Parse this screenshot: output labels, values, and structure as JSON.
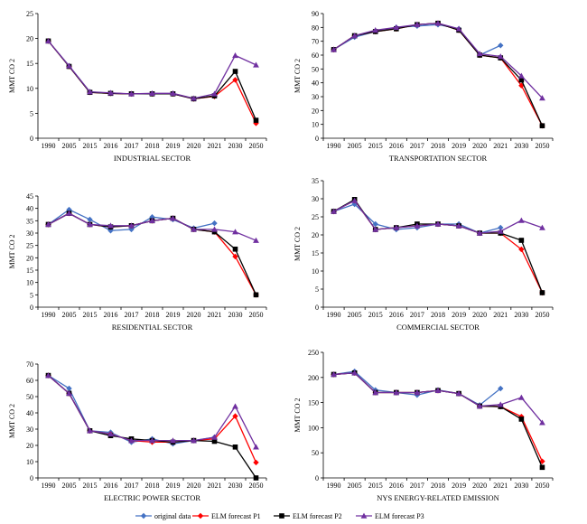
{
  "chart_data": {
    "x_categories": [
      "1990",
      "2005",
      "2015",
      "2016",
      "2017",
      "2018",
      "2019",
      "2020",
      "2021",
      "2030",
      "2050"
    ],
    "legend": [
      {
        "name": "original data",
        "color": "#4472C4",
        "marker": "diamond"
      },
      {
        "name": "ELM forecast P1",
        "color": "#FF0000",
        "marker": "diamond"
      },
      {
        "name": "ELM forecast P2",
        "color": "#000000",
        "marker": "square"
      },
      {
        "name": "ELM forecast P3",
        "color": "#7030A0",
        "marker": "triangle"
      }
    ],
    "panels": [
      {
        "type": "line",
        "title": "INDUSTRIAL SECTOR",
        "ylabel": "MMT CO 2",
        "ylim": [
          0,
          25
        ],
        "yticks": [
          0,
          5,
          10,
          15,
          20,
          25
        ],
        "series": [
          {
            "name": "original data",
            "values": [
              19.5,
              14.5,
              9.3,
              9.0,
              8.9,
              8.9,
              8.9,
              7.9,
              8.4,
              null,
              null
            ]
          },
          {
            "name": "ELM forecast P1",
            "values": [
              19.5,
              14.4,
              9.2,
              9.0,
              8.9,
              8.9,
              8.9,
              7.9,
              8.4,
              11.7,
              3.0
            ]
          },
          {
            "name": "ELM forecast P2",
            "values": [
              19.5,
              14.4,
              9.2,
              9.0,
              8.9,
              8.9,
              8.9,
              7.9,
              8.5,
              13.4,
              3.6
            ]
          },
          {
            "name": "ELM forecast P3",
            "values": [
              19.5,
              14.5,
              9.3,
              9.1,
              8.9,
              9.0,
              9.0,
              8.0,
              8.9,
              16.6,
              14.7
            ]
          }
        ]
      },
      {
        "type": "line",
        "title": "TRANSPORTATION SECTOR",
        "ylabel": "MMT CO 2",
        "ylim": [
          0,
          90
        ],
        "yticks": [
          0,
          10,
          20,
          30,
          40,
          50,
          60,
          70,
          80,
          90
        ],
        "series": [
          {
            "name": "original data",
            "values": [
              64,
              73,
              77,
              80,
              81,
              82,
              79,
              60,
              67,
              null,
              null
            ]
          },
          {
            "name": "ELM forecast P1",
            "values": [
              64,
              74,
              77,
              79,
              82,
              83,
              78,
              60,
              58,
              38,
              9
            ]
          },
          {
            "name": "ELM forecast P2",
            "values": [
              64,
              74,
              77,
              79,
              82,
              83,
              78,
              60,
              58,
              42,
              9
            ]
          },
          {
            "name": "ELM forecast P3",
            "values": [
              64,
              74,
              78,
              80,
              82,
              83,
              79,
              61,
              59,
              45,
              29
            ]
          }
        ]
      },
      {
        "type": "line",
        "title": "RESIDENTIAL SECTOR",
        "ylabel": "MMT CO 2",
        "ylim": [
          0,
          45
        ],
        "yticks": [
          0,
          5,
          10,
          15,
          20,
          25,
          30,
          35,
          40,
          45
        ],
        "series": [
          {
            "name": "original data",
            "values": [
              33.5,
              39.5,
              35.5,
              31.0,
              31.5,
              36.5,
              35.5,
              32.0,
              34.0,
              null,
              null
            ]
          },
          {
            "name": "ELM forecast P1",
            "values": [
              33.5,
              38.0,
              33.5,
              32.5,
              33.0,
              35.0,
              36.0,
              31.5,
              30.5,
              20.5,
              5.0
            ]
          },
          {
            "name": "ELM forecast P2",
            "values": [
              33.5,
              38.0,
              33.5,
              32.5,
              33.0,
              35.0,
              36.0,
              31.5,
              30.5,
              23.5,
              5.0
            ]
          },
          {
            "name": "ELM forecast P3",
            "values": [
              33.5,
              38.0,
              33.5,
              33.0,
              33.0,
              35.0,
              36.0,
              31.5,
              31.5,
              30.5,
              27.0
            ]
          }
        ]
      },
      {
        "type": "line",
        "title": "COMMERCIAL SECTOR",
        "ylabel": "MMT CO 2",
        "ylim": [
          0,
          35
        ],
        "yticks": [
          0,
          5,
          10,
          15,
          20,
          25,
          30,
          35
        ],
        "series": [
          {
            "name": "original data",
            "values": [
              26.5,
              28.5,
              23.0,
              21.5,
              22.0,
              23.0,
              23.0,
              20.5,
              22.0,
              null,
              null
            ]
          },
          {
            "name": "ELM forecast P1",
            "values": [
              26.5,
              29.5,
              21.5,
              22.0,
              22.5,
              23.0,
              22.5,
              20.5,
              20.5,
              16.0,
              4.0
            ]
          },
          {
            "name": "ELM forecast P2",
            "values": [
              26.5,
              29.8,
              21.5,
              22.0,
              23.0,
              23.0,
              22.5,
              20.5,
              20.5,
              18.5,
              4.0
            ]
          },
          {
            "name": "ELM forecast P3",
            "values": [
              26.5,
              29.5,
              21.5,
              22.0,
              22.5,
              23.0,
              22.5,
              20.5,
              21.0,
              24.0,
              22.0
            ]
          }
        ]
      },
      {
        "type": "line",
        "title": "ELECTRIC POWER SECTOR",
        "ylabel": "MMT CO 2",
        "ylim": [
          0,
          70
        ],
        "yticks": [
          0,
          10,
          20,
          30,
          40,
          50,
          60,
          70
        ],
        "series": [
          {
            "name": "original data",
            "values": [
              63,
              55,
              29,
              28,
              22,
              24,
              21,
              23,
              25,
              null,
              null
            ]
          },
          {
            "name": "ELM forecast P1",
            "values": [
              63,
              52,
              29,
              27,
              23,
              22,
              22,
              23,
              24,
              38,
              9.5
            ]
          },
          {
            "name": "ELM forecast P2",
            "values": [
              63,
              52,
              29,
              26,
              24,
              23,
              22,
              23,
              22.5,
              19,
              0
            ]
          },
          {
            "name": "ELM forecast P3",
            "values": [
              63,
              52,
              29,
              27,
              23,
              23,
              23,
              23,
              25,
              44,
              19
            ]
          }
        ]
      },
      {
        "type": "line",
        "title": "NYS ENERGY-RELATED EMISSION",
        "ylabel": "MMT CO 2",
        "ylim": [
          0,
          250
        ],
        "yticks": [
          0,
          50,
          100,
          150,
          200,
          250
        ],
        "series": [
          {
            "name": "original data",
            "values": [
              206,
              212,
              175,
              170,
              165,
              175,
              168,
              145,
              178,
              null,
              null
            ]
          },
          {
            "name": "ELM forecast P1",
            "values": [
              206,
              209,
              170,
              170,
              170,
              174,
              168,
              143,
              142,
              122,
              33
            ]
          },
          {
            "name": "ELM forecast P2",
            "values": [
              206,
              209,
              170,
              170,
              170,
              174,
              168,
              143,
              142,
              117,
              21
            ]
          },
          {
            "name": "ELM forecast P3",
            "values": [
              206,
              209,
              170,
              170,
              170,
              174,
              168,
              143,
              146,
              160,
              110
            ]
          }
        ]
      }
    ]
  }
}
